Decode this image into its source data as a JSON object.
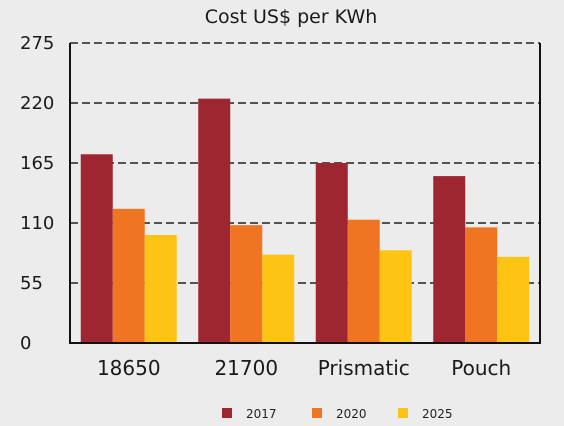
{
  "chart_data": {
    "type": "bar",
    "title": "Cost US$ per KWh",
    "xlabel": "",
    "ylabel": "",
    "categories": [
      "18650",
      "21700",
      "Prismatic",
      "Pouch"
    ],
    "series": [
      {
        "name": "2017",
        "values": [
          173,
          224,
          165,
          153
        ],
        "color": "#9e2630"
      },
      {
        "name": "2020",
        "values": [
          123,
          108,
          113,
          106
        ],
        "color": "#f07522"
      },
      {
        "name": "2025",
        "values": [
          99,
          81,
          85,
          79
        ],
        "color": "#fec414"
      }
    ],
    "ylim": [
      0,
      275
    ],
    "yticks": [
      "0",
      "55",
      "110",
      "165",
      "220",
      "275"
    ],
    "grid": "horizontal-dashed",
    "legend": "bottom-center"
  }
}
